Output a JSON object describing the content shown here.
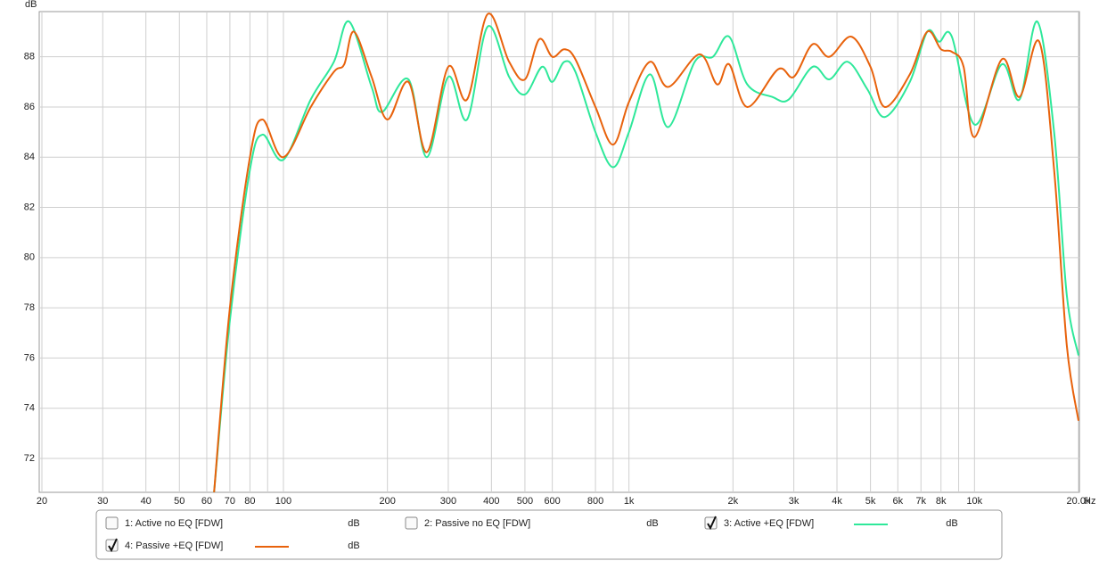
{
  "chart_data": {
    "type": "line",
    "y_label": "dB",
    "x_unit": "Hz",
    "xscale": "log",
    "xlim": [
      20,
      20000
    ],
    "ylim": [
      70.65,
      89.8
    ],
    "grid": true,
    "yticks": [
      72,
      74,
      76,
      78,
      80,
      82,
      84,
      86,
      88
    ],
    "xticks": [
      20,
      30,
      40,
      50,
      60,
      70,
      80,
      100,
      200,
      300,
      400,
      500,
      600,
      800,
      {
        "value": 1000,
        "label": "1k"
      },
      {
        "value": 2000,
        "label": "2k"
      },
      {
        "value": 3000,
        "label": "3k"
      },
      {
        "value": 4000,
        "label": "4k"
      },
      {
        "value": 5000,
        "label": "5k"
      },
      {
        "value": 6000,
        "label": "6k"
      },
      {
        "value": 7000,
        "label": "7k"
      },
      {
        "value": 8000,
        "label": "8k"
      },
      {
        "value": 10000,
        "label": "10k"
      },
      {
        "value": 20000,
        "label": "20.0k"
      }
    ],
    "minor_xticks": [
      90,
      900,
      9000
    ],
    "series": [
      {
        "name": "1: Active no EQ [FDW]",
        "color": "#33cc33",
        "checked": false,
        "unit": "dB"
      },
      {
        "name": "2: Passive no EQ [FDW]",
        "color": "#dd1111",
        "checked": false,
        "unit": "dB"
      },
      {
        "name": "3: Active +EQ [FDW]",
        "color": "#2ee89a",
        "checked": true,
        "unit": "dB",
        "x": [
          63,
          70,
          80,
          87,
          100,
          120,
          140,
          155,
          180,
          193,
          230,
          260,
          300,
          340,
          390,
          450,
          500,
          560,
          600,
          650,
          700,
          800,
          900,
          1000,
          1150,
          1300,
          1550,
          1750,
          1950,
          2200,
          2600,
          2900,
          3400,
          3800,
          4300,
          4900,
          5500,
          6500,
          7300,
          7900,
          8600,
          10000,
          12000,
          13500,
          15200,
          17000,
          18500,
          20000
        ],
        "values": [
          70.65,
          77.5,
          83.5,
          84.9,
          83.9,
          86.3,
          87.8,
          89.4,
          86.8,
          85.8,
          87.1,
          84.0,
          87.2,
          85.5,
          89.2,
          87.2,
          86.5,
          87.6,
          87.0,
          87.8,
          87.4,
          85.0,
          83.6,
          85.0,
          87.3,
          85.2,
          87.8,
          88.0,
          88.8,
          86.9,
          86.4,
          86.3,
          87.6,
          87.1,
          87.8,
          86.7,
          85.6,
          87.0,
          89.0,
          88.6,
          88.8,
          85.3,
          87.7,
          86.3,
          89.4,
          85.0,
          78.5,
          76.1
        ]
      },
      {
        "name": "4: Passive +EQ [FDW]",
        "color": "#e8620c",
        "checked": true,
        "unit": "dB",
        "x": [
          63,
          70,
          80,
          87,
          100,
          120,
          140,
          150,
          160,
          180,
          200,
          230,
          260,
          300,
          340,
          390,
          450,
          500,
          550,
          600,
          650,
          700,
          800,
          900,
          1000,
          1150,
          1300,
          1600,
          1800,
          1950,
          2200,
          2700,
          3000,
          3400,
          3800,
          4400,
          5000,
          5500,
          6500,
          7300,
          8000,
          8600,
          9300,
          10000,
          12000,
          13500,
          15400,
          17000,
          18500,
          20000
        ],
        "values": [
          70.65,
          78.0,
          84.0,
          85.5,
          84.0,
          86.0,
          87.4,
          87.7,
          89.0,
          87.2,
          85.5,
          87.0,
          84.2,
          87.6,
          86.3,
          89.7,
          87.8,
          87.1,
          88.7,
          88.0,
          88.3,
          87.9,
          86.0,
          84.5,
          86.2,
          87.8,
          86.8,
          88.1,
          86.9,
          87.7,
          86.0,
          87.5,
          87.2,
          88.5,
          88.0,
          88.8,
          87.6,
          86.0,
          87.3,
          89.0,
          88.3,
          88.2,
          87.6,
          84.8,
          87.9,
          86.4,
          88.6,
          83.5,
          76.5,
          73.5
        ]
      }
    ]
  }
}
